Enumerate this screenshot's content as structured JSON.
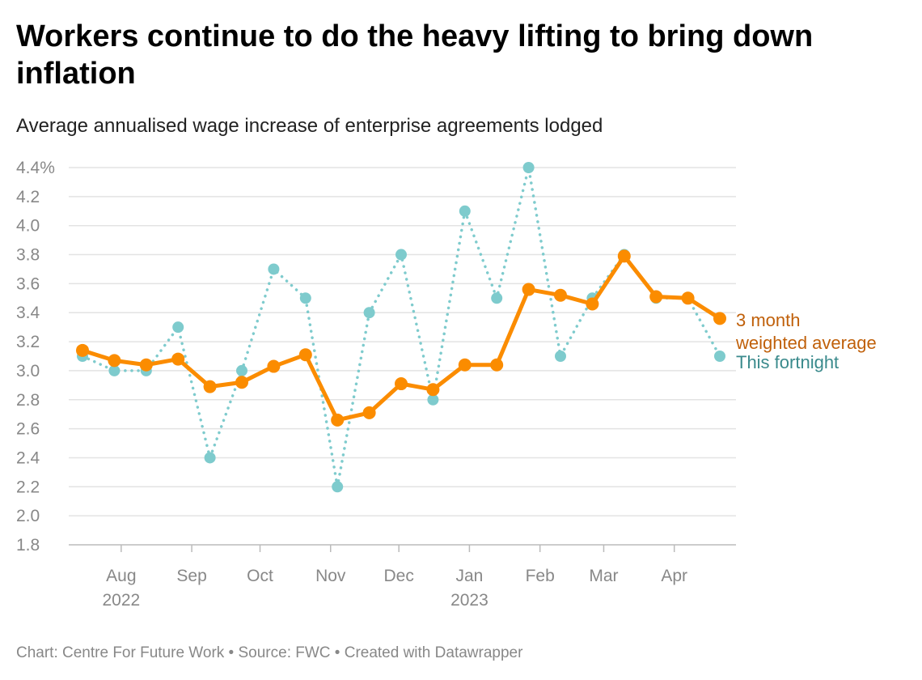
{
  "chart_data": {
    "type": "line",
    "title": "Workers continue to do the heavy lifting to bring down inflation",
    "subtitle": "Average annualised wage increase of enterprise agreements lodged",
    "footer": "Chart: Centre For Future Work • Source: FWC • Created with Datawrapper",
    "ylim": [
      1.8,
      4.4
    ],
    "yticks": [
      1.8,
      2.0,
      2.2,
      2.4,
      2.6,
      2.8,
      3.0,
      3.2,
      3.4,
      3.6,
      3.8,
      4.0,
      4.2,
      4.4
    ],
    "ytick_labels": [
      "1.8",
      "2.0",
      "2.2",
      "2.4",
      "2.6",
      "2.8",
      "3.0",
      "3.2",
      "3.4",
      "3.6",
      "3.8",
      "4.0",
      "4.2",
      "4.4%"
    ],
    "xticks": [
      {
        "date": "2022-08-01",
        "label": "Aug",
        "year": "2022"
      },
      {
        "date": "2022-09-01",
        "label": "Sep"
      },
      {
        "date": "2022-10-01",
        "label": "Oct"
      },
      {
        "date": "2022-11-01",
        "label": "Nov"
      },
      {
        "date": "2022-12-01",
        "label": "Dec"
      },
      {
        "date": "2023-01-01",
        "label": "Jan",
        "year": "2023"
      },
      {
        "date": "2023-02-01",
        "label": "Feb"
      },
      {
        "date": "2023-03-01",
        "label": "Mar"
      },
      {
        "date": "2023-04-01",
        "label": "Apr"
      }
    ],
    "grid": true,
    "x": [
      "2022-07-15",
      "2022-07-29",
      "2022-08-12",
      "2022-08-26",
      "2022-09-09",
      "2022-09-23",
      "2022-10-07",
      "2022-10-21",
      "2022-11-04",
      "2022-11-18",
      "2022-12-02",
      "2022-12-16",
      "2022-12-30",
      "2023-01-13",
      "2023-01-27",
      "2023-02-10",
      "2023-02-24",
      "2023-03-10",
      "2023-03-24",
      "2023-04-07",
      "2023-04-21"
    ],
    "series": [
      {
        "name": "This fortnight",
        "color": "#7ecbcd",
        "label_color": "#3a8a8c",
        "style": "dotted",
        "values": [
          3.1,
          3.0,
          3.0,
          3.3,
          2.4,
          3.0,
          3.7,
          3.5,
          2.2,
          3.4,
          3.8,
          2.8,
          4.1,
          3.5,
          4.4,
          3.1,
          3.5,
          3.8,
          3.5,
          3.5,
          3.1
        ]
      },
      {
        "name": "3 month weighted average",
        "label_lines": [
          "3 month",
          "weighted average"
        ],
        "color": "#fb8c00",
        "label_color": "#c0600a",
        "style": "solid",
        "values": [
          3.14,
          3.07,
          3.04,
          3.08,
          2.89,
          2.92,
          3.03,
          3.11,
          2.66,
          2.71,
          2.91,
          2.87,
          3.04,
          3.04,
          3.56,
          3.52,
          3.46,
          3.79,
          3.51,
          3.5,
          3.36
        ]
      }
    ]
  }
}
